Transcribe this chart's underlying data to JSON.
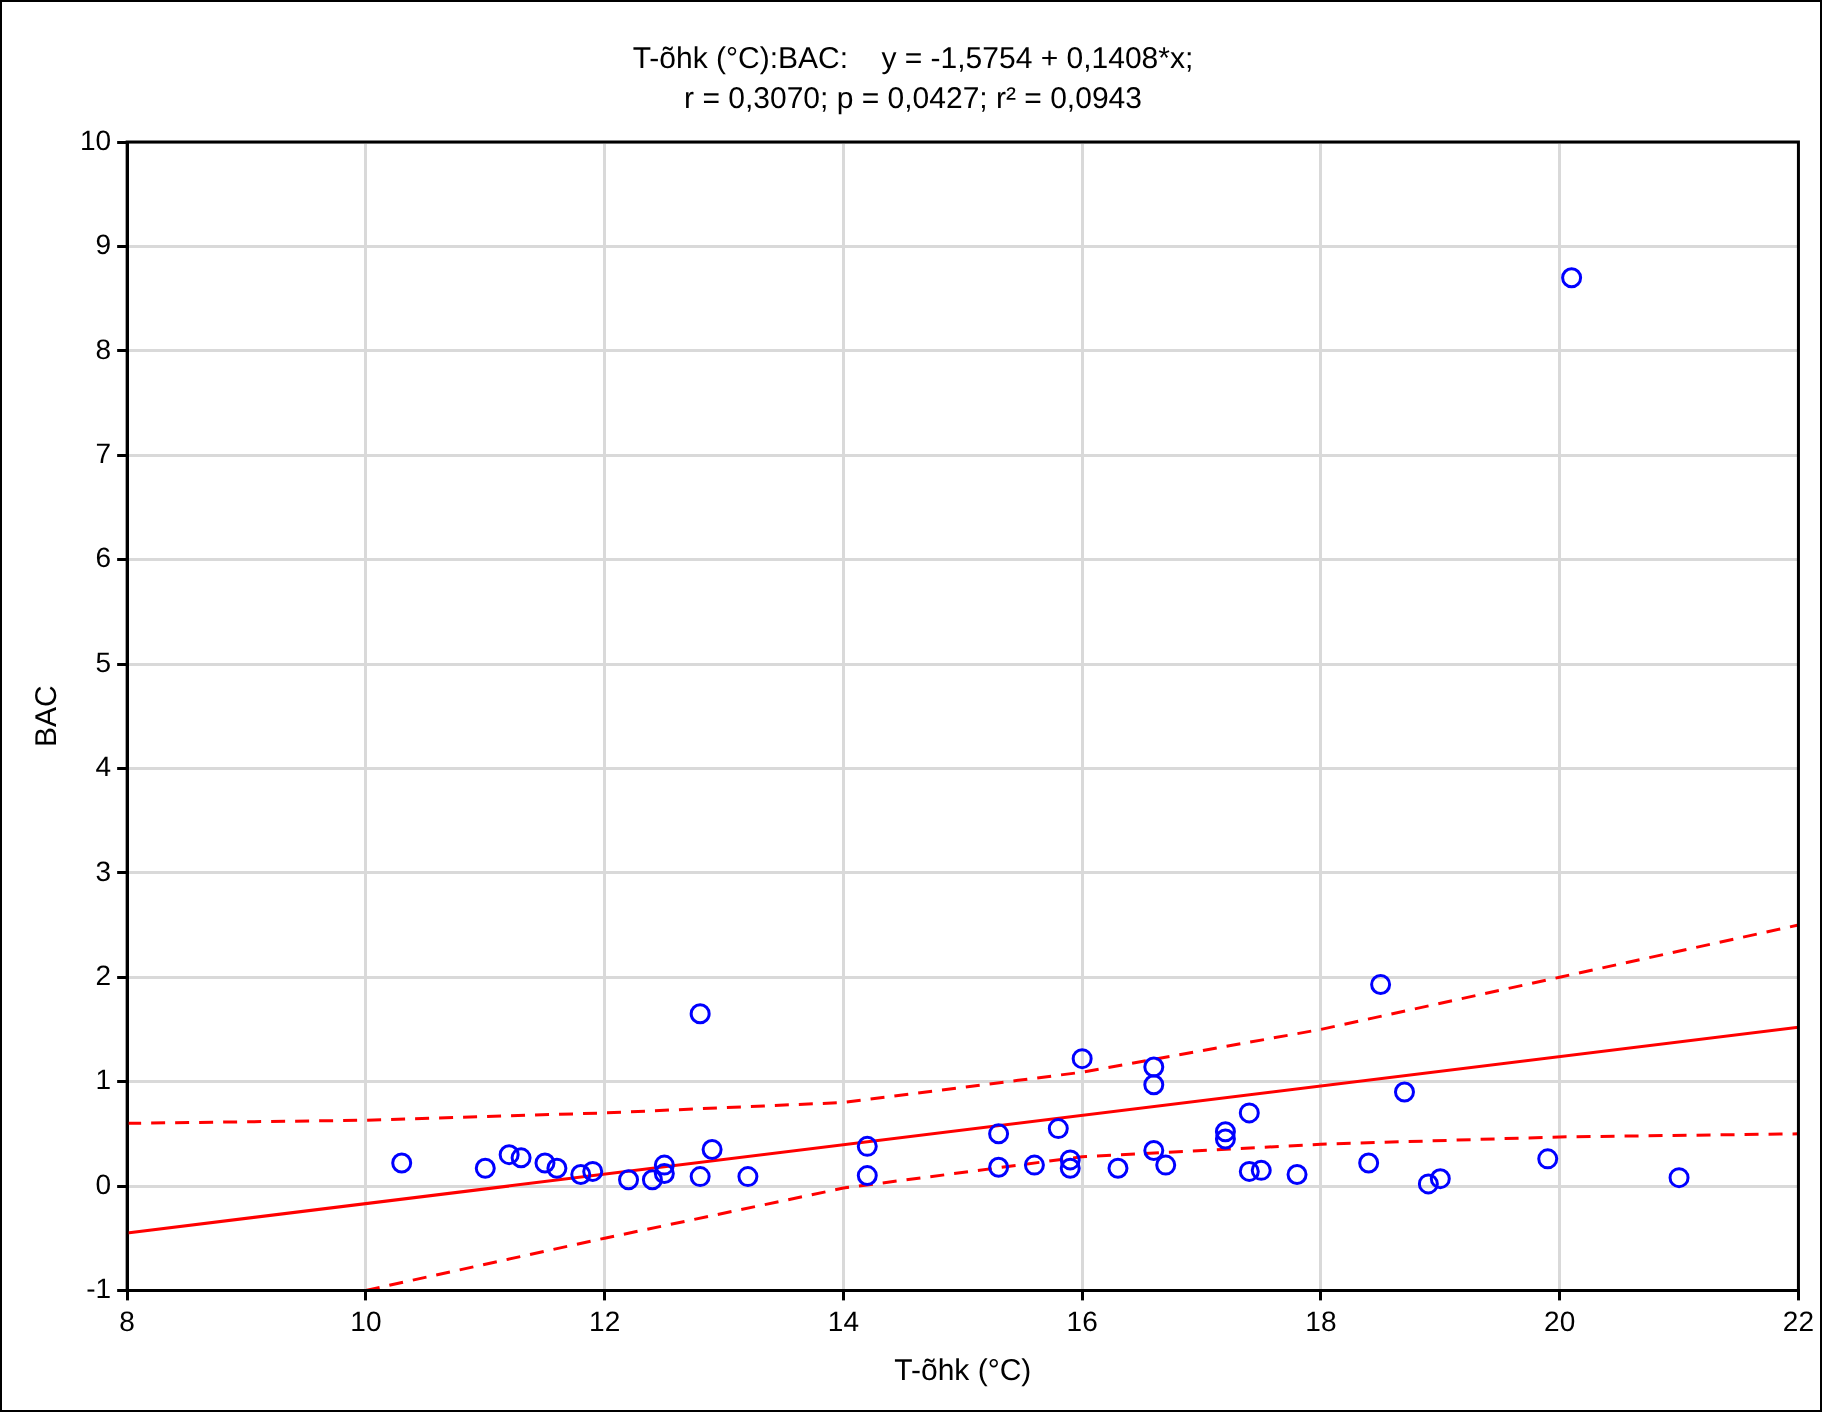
{
  "chart_data": {
    "type": "scatter",
    "title": "T-õhk (°C):BAC:    y = -1,5754 + 0,1408*x;",
    "subtitle": "r = 0,3070; p = 0,0427; r² = 0,0943",
    "xlabel": "T-õhk (°C)",
    "ylabel": "BAC",
    "xlim": [
      8,
      22
    ],
    "xticks": [
      8,
      10,
      12,
      14,
      16,
      18,
      20,
      22
    ],
    "ylim": [
      -1,
      10
    ],
    "yticks": [
      -1,
      0,
      1,
      2,
      3,
      4,
      5,
      6,
      7,
      8,
      9,
      10
    ],
    "grid": true,
    "legend": false,
    "marker": "circle",
    "series": [
      {
        "color": "#0000ff",
        "x": [
          10.3,
          11.0,
          11.2,
          11.3,
          11.5,
          11.6,
          11.8,
          11.9,
          12.2,
          12.4,
          12.5,
          12.5,
          12.8,
          12.8,
          12.9,
          13.2,
          14.2,
          14.2,
          15.3,
          15.3,
          15.6,
          15.8,
          15.9,
          15.9,
          16.0,
          16.3,
          16.6,
          16.6,
          16.6,
          16.7,
          17.2,
          17.2,
          17.4,
          17.4,
          17.5,
          17.8,
          18.4,
          18.5,
          18.7,
          18.9,
          19.0,
          19.9,
          20.1,
          21.0
        ],
        "values": [
          0.22,
          0.17,
          0.3,
          0.27,
          0.22,
          0.17,
          0.11,
          0.14,
          0.06,
          0.06,
          0.2,
          0.12,
          1.65,
          0.09,
          0.35,
          0.09,
          0.38,
          0.1,
          0.5,
          0.18,
          0.2,
          0.55,
          0.25,
          0.17,
          1.22,
          0.17,
          1.14,
          0.97,
          0.34,
          0.2,
          0.52,
          0.45,
          0.7,
          0.14,
          0.15,
          0.11,
          0.22,
          1.93,
          0.9,
          0.02,
          0.07,
          0.26,
          8.7,
          0.08
        ]
      },
      {
        "type": "line",
        "color": "#ff0000",
        "line_style": "solid",
        "marker": "none",
        "x": [
          8,
          22
        ],
        "values": [
          -0.45,
          1.52
        ]
      },
      {
        "type": "line",
        "color": "#ff0000",
        "line_style": "dashed",
        "marker": "none",
        "x": [
          8,
          10,
          12,
          14,
          16,
          18,
          20,
          22
        ],
        "values": [
          0.6,
          0.63,
          0.7,
          0.8,
          1.09,
          1.5,
          2.0,
          2.5
        ]
      },
      {
        "type": "line",
        "color": "#ff0000",
        "line_style": "dashed",
        "marker": "none",
        "x": [
          10,
          12,
          14,
          16,
          18,
          20,
          22
        ],
        "values": [
          -1,
          -0.5,
          -0.02,
          0.28,
          0.4,
          0.47,
          0.5
        ]
      }
    ]
  }
}
